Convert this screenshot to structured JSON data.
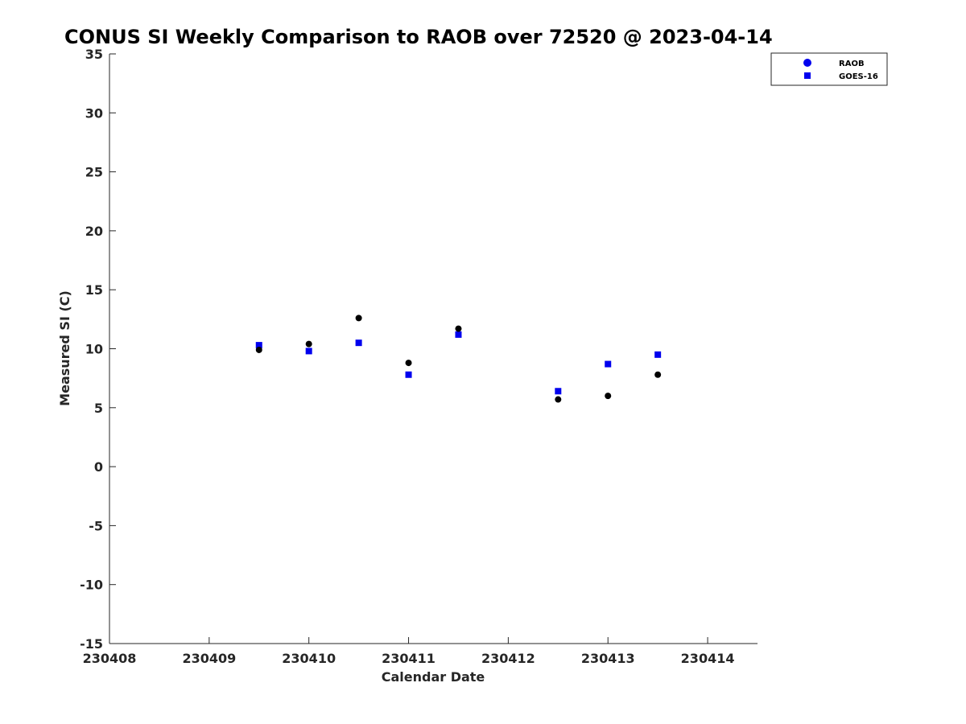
{
  "chart_data": {
    "type": "scatter",
    "title": "CONUS SI Weekly Comparison to RAOB over 72520 @ 2023-04-14",
    "xlabel": "Calendar Date",
    "ylabel": "Measured SI (C)",
    "xlim": [
      0,
      6.5
    ],
    "ylim": [
      -15,
      35
    ],
    "x_tick_values": [
      0,
      1,
      2,
      3,
      4,
      5,
      6
    ],
    "x_tick_labels": [
      "230408",
      "230409",
      "230410",
      "230411",
      "230412",
      "230413",
      "230414"
    ],
    "y_ticks": [
      -15,
      -10,
      -5,
      0,
      5,
      10,
      15,
      20,
      25,
      30,
      35
    ],
    "grid": false,
    "legend_position": "top-right",
    "series": [
      {
        "name": "RAOB",
        "marker": "circle",
        "color": "#000000",
        "legend_color": "#0000ee",
        "points": [
          {
            "x": 1.5,
            "y": 9.9
          },
          {
            "x": 2.0,
            "y": 10.4
          },
          {
            "x": 2.5,
            "y": 12.6
          },
          {
            "x": 3.0,
            "y": 8.8
          },
          {
            "x": 3.5,
            "y": 11.7
          },
          {
            "x": 4.5,
            "y": 5.7
          },
          {
            "x": 5.0,
            "y": 6.0
          },
          {
            "x": 5.5,
            "y": 7.8
          }
        ]
      },
      {
        "name": "GOES-16",
        "marker": "square",
        "color": "#0000ee",
        "legend_color": "#0000ee",
        "points": [
          {
            "x": 1.5,
            "y": 10.3
          },
          {
            "x": 2.0,
            "y": 9.8
          },
          {
            "x": 2.5,
            "y": 10.5
          },
          {
            "x": 3.0,
            "y": 7.8
          },
          {
            "x": 3.5,
            "y": 11.2
          },
          {
            "x": 4.5,
            "y": 6.4
          },
          {
            "x": 5.0,
            "y": 8.7
          },
          {
            "x": 5.5,
            "y": 9.5
          }
        ]
      }
    ]
  }
}
